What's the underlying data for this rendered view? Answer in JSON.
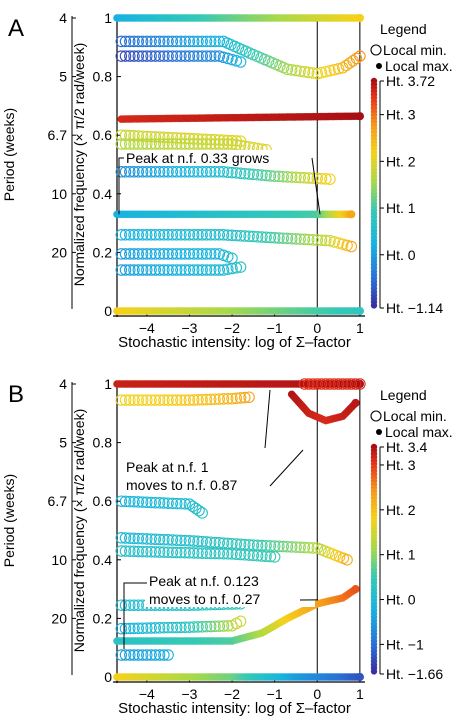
{
  "chart_data": [
    {
      "type": "scatter",
      "panel_label": "A",
      "xlabel": "Stochastic intensity: log of Σ–factor",
      "ylabel": "Normalized frequency (× π/2 rad/week)",
      "y2label": "Period (weeks)",
      "xlim": [
        -4.7,
        1.05
      ],
      "ylim": [
        0,
        1
      ],
      "x_ticks": [
        "−4",
        "−3",
        "−2",
        "−1",
        "0",
        "1"
      ],
      "y_ticks": [
        "0",
        "0.2",
        "0.4",
        "0.6",
        "0.8",
        "1"
      ],
      "period_ticks": [
        "4",
        "5",
        "6.7",
        "10",
        "20"
      ],
      "period_tick_freqs": [
        1,
        0.8,
        0.6,
        0.4,
        0.2
      ],
      "vertical_lines_x": [
        0,
        1
      ],
      "legend": {
        "title": "Legend",
        "items": [
          "Local min.",
          "Local max."
        ],
        "placement": "right"
      },
      "colorbar": {
        "labels": [
          "Ht. 3.72",
          "Ht. 3",
          "Ht. 2",
          "Ht. 1",
          "Ht. 0",
          "Ht. −1.14"
        ],
        "values": [
          3.72,
          3,
          2,
          1,
          0,
          -1.14
        ],
        "min": -1.14,
        "max": 3.72
      },
      "annotations": [
        {
          "text": "Peak at n.f. 0.33 grows",
          "x": -1.0,
          "y": 0.33
        }
      ],
      "series": [
        {
          "type": "max",
          "x": [
            -4.7,
            1.0
          ],
          "y": [
            1.0,
            1.0
          ],
          "h": [
            0.2,
            2.2
          ]
        },
        {
          "type": "min",
          "x": [
            -4.6,
            -2.2,
            -1.5,
            -0.7,
            0.0,
            0.6,
            1.0
          ],
          "y": [
            0.92,
            0.92,
            0.875,
            0.825,
            0.81,
            0.83,
            0.87
          ],
          "h": [
            -0.6,
            0.3,
            0.9,
            1.5,
            2.0,
            2.4,
            2.8
          ]
        },
        {
          "type": "min",
          "x": [
            -4.6,
            -2.3,
            -1.8
          ],
          "y": [
            0.87,
            0.87,
            0.85
          ],
          "h": [
            -0.9,
            -0.2,
            0.3
          ]
        },
        {
          "type": "max",
          "x": [
            -4.6,
            1.0
          ],
          "y": [
            0.655,
            0.665
          ],
          "h": [
            3.45,
            3.72
          ]
        },
        {
          "type": "min",
          "x": [
            -4.6,
            -1.8
          ],
          "y": [
            0.6,
            0.58
          ],
          "h": [
            1.8,
            2.0
          ]
        },
        {
          "type": "min",
          "x": [
            -4.6,
            -2.0,
            -1.2
          ],
          "y": [
            0.57,
            0.57,
            0.55
          ],
          "h": [
            1.6,
            1.8,
            2.0
          ]
        },
        {
          "type": "min",
          "x": [
            -4.6,
            -2.2,
            -1.0,
            0.3
          ],
          "y": [
            0.475,
            0.475,
            0.46,
            0.45
          ],
          "h": [
            -0.2,
            0.5,
            1.2,
            2.2
          ]
        },
        {
          "type": "max",
          "x": [
            -4.7,
            0.0,
            0.8
          ],
          "y": [
            0.33,
            0.33,
            0.33
          ],
          "h": [
            0.2,
            1.0,
            2.6
          ]
        },
        {
          "type": "min",
          "x": [
            -4.6,
            -2.2,
            -1.0,
            0.3,
            0.8
          ],
          "y": [
            0.26,
            0.26,
            0.25,
            0.24,
            0.22
          ],
          "h": [
            0.2,
            0.5,
            1.0,
            1.8,
            2.6
          ]
        },
        {
          "type": "min",
          "x": [
            -4.6,
            -2.3,
            -2.0
          ],
          "y": [
            0.195,
            0.195,
            0.18
          ],
          "h": [
            0.0,
            0.3,
            0.5
          ]
        },
        {
          "type": "min",
          "x": [
            -4.6,
            -2.2,
            -1.8
          ],
          "y": [
            0.14,
            0.14,
            0.15
          ],
          "h": [
            0.0,
            0.4,
            0.6
          ]
        },
        {
          "type": "max",
          "x": [
            -4.7,
            0.0,
            1.0
          ],
          "y": [
            0.0,
            0.0,
            0.0
          ],
          "h": [
            2.2,
            1.0,
            0.8
          ]
        }
      ]
    },
    {
      "type": "scatter",
      "panel_label": "B",
      "xlabel": "Stochastic intensity: log of Σ–factor",
      "ylabel": "Normalized frequency (× π/2 rad/week)",
      "y2label": "Period (weeks)",
      "xlim": [
        -4.7,
        1.05
      ],
      "ylim": [
        0,
        1
      ],
      "x_ticks": [
        "−4",
        "−3",
        "−2",
        "−1",
        "0",
        "1"
      ],
      "y_ticks": [
        "0",
        "0.2",
        "0.4",
        "0.6",
        "0.8",
        "1"
      ],
      "period_ticks": [
        "4",
        "5",
        "6.7",
        "10",
        "20"
      ],
      "period_tick_freqs": [
        1,
        0.8,
        0.6,
        0.4,
        0.2
      ],
      "vertical_lines_x": [
        0,
        1
      ],
      "legend": {
        "title": "Legend",
        "items": [
          "Local min.",
          "Local max."
        ],
        "placement": "right"
      },
      "colorbar": {
        "labels": [
          "Ht. 3.4",
          "Ht. 3",
          "Ht. 2",
          "Ht. 1",
          "Ht. 0",
          "Ht. −1",
          "Ht. −1.66"
        ],
        "values": [
          3.4,
          3,
          2,
          1,
          0,
          -1,
          -1.66
        ],
        "min": -1.66,
        "max": 3.4
      },
      "annotations": [
        {
          "text": "Peak at n.f. 1",
          "x": -1.0,
          "y": 0.98
        },
        {
          "text": "moves to n.f. 0.87",
          "x": 0.0,
          "y": 0.87
        },
        {
          "text": "Peak at n.f. 0.123",
          "x": -4.6,
          "y": 0.123
        },
        {
          "text": "moves to n.f. 0.27",
          "x": 0.0,
          "y": 0.27
        }
      ],
      "series": [
        {
          "type": "max",
          "x": [
            -4.7,
            -1.0,
            0.0,
            1.0
          ],
          "y": [
            1.0,
            1.0,
            1.0,
            1.0
          ],
          "h": [
            3.2,
            3.3,
            3.35,
            3.4
          ]
        },
        {
          "type": "min",
          "x": [
            -0.3,
            1.0
          ],
          "y": [
            1.0,
            1.0
          ],
          "h": [
            3.0,
            3.1
          ]
        },
        {
          "type": "max",
          "x": [
            -0.6,
            -0.2,
            0.2,
            0.6,
            0.9
          ],
          "y": [
            0.965,
            0.9,
            0.875,
            0.89,
            0.935
          ],
          "h": [
            3.35,
            3.2,
            3.1,
            3.2,
            3.3
          ]
        },
        {
          "type": "min",
          "x": [
            -4.6,
            -3.0,
            -2.0,
            -1.6
          ],
          "y": [
            0.945,
            0.945,
            0.95,
            0.955
          ],
          "h": [
            1.7,
            1.9,
            2.1,
            2.3
          ]
        },
        {
          "type": "min",
          "x": [
            -4.6,
            -3.0,
            -2.7
          ],
          "y": [
            0.6,
            0.59,
            0.56
          ],
          "h": [
            -0.2,
            0.0,
            0.2
          ]
        },
        {
          "type": "min",
          "x": [
            -4.6,
            -3.0,
            -1.5,
            0.0,
            0.7
          ],
          "y": [
            0.475,
            0.465,
            0.45,
            0.44,
            0.4
          ],
          "h": [
            -0.1,
            0.1,
            0.4,
            1.2,
            2.2
          ]
        },
        {
          "type": "min",
          "x": [
            -4.6,
            -2.0,
            -1.0
          ],
          "y": [
            0.43,
            0.42,
            0.41
          ],
          "h": [
            0.1,
            0.3,
            0.5
          ]
        },
        {
          "type": "max",
          "x": [
            -4.7,
            -2.0,
            -1.3,
            -0.7,
            0.0,
            0.6,
            0.9
          ],
          "y": [
            0.123,
            0.123,
            0.15,
            0.2,
            0.25,
            0.27,
            0.3
          ],
          "h": [
            0.2,
            0.6,
            1.2,
            1.8,
            2.3,
            2.6,
            2.8
          ]
        },
        {
          "type": "min",
          "x": [
            -4.6,
            -3.0,
            -1.8
          ],
          "y": [
            0.245,
            0.245,
            0.25
          ],
          "h": [
            0.0,
            0.2,
            0.4
          ]
        },
        {
          "type": "min",
          "x": [
            -4.6,
            -3.0,
            -2.0,
            -1.8
          ],
          "y": [
            0.165,
            0.17,
            0.175,
            0.19
          ],
          "h": [
            -0.3,
            0.3,
            1.2,
            1.5
          ]
        },
        {
          "type": "min",
          "x": [
            -4.6,
            -3.5
          ],
          "y": [
            0.075,
            0.075
          ],
          "h": [
            -0.5,
            -0.3
          ]
        },
        {
          "type": "max",
          "x": [
            -4.7,
            -2.0,
            -0.5,
            0.5,
            1.0
          ],
          "y": [
            0.0,
            0.0,
            0.0,
            0.0,
            0.0
          ],
          "h": [
            1.8,
            0.8,
            -0.5,
            -1.0,
            -1.3
          ]
        }
      ]
    }
  ]
}
